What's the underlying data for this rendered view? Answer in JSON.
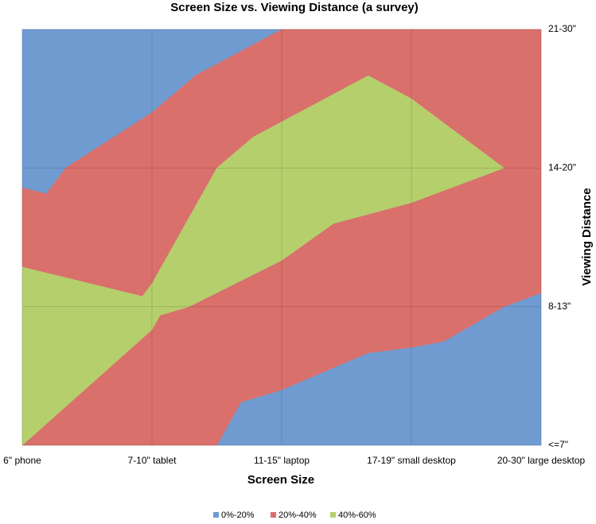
{
  "chart_data": {
    "type": "contour",
    "title": "Screen Size vs. Viewing Distance (a survey)",
    "x_label": "Screen Size",
    "y_label": "Viewing Distance",
    "categories": [
      "6\" phone",
      "7-10\" tablet",
      "11-15\" laptop",
      "17-19\" small desktop",
      "20-30\" large desktop"
    ],
    "y_categories": [
      "<=7\"",
      "8-13\"",
      "14-20\"",
      "21-30\""
    ],
    "values": [
      [
        40,
        30,
        10,
        8,
        5
      ],
      [
        50,
        42,
        35,
        25,
        18
      ],
      [
        15,
        30,
        50,
        45,
        38
      ],
      [
        5,
        5,
        20,
        35,
        25
      ]
    ],
    "series": [
      {
        "name": "0%-20%",
        "color": "#6f9bd1",
        "range": [
          0,
          20
        ]
      },
      {
        "name": "20%-40%",
        "color": "#d9706c",
        "range": [
          20,
          40
        ]
      },
      {
        "name": "40%-60%",
        "color": "#b5cf6c",
        "range": [
          40,
          60
        ]
      }
    ],
    "grid": true
  }
}
